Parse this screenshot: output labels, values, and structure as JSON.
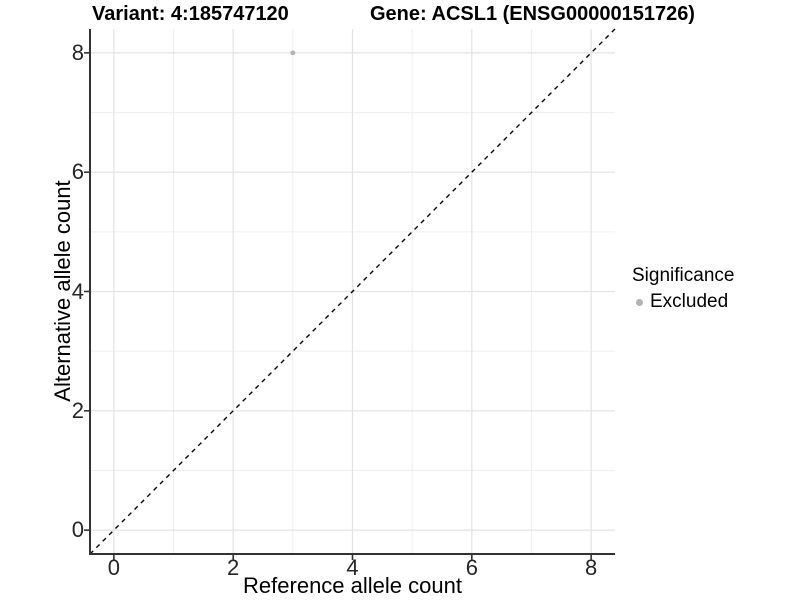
{
  "chart_data": {
    "type": "scatter",
    "title_left": "Variant: 4:185747120",
    "title_right": "Gene: ACSL1 (ENSG00000151726)",
    "xlabel": "Reference allele count",
    "ylabel": "Alternative allele count",
    "xlim": [
      -0.4,
      8.4
    ],
    "ylim": [
      -0.4,
      8.4
    ],
    "xticks": [
      0,
      2,
      4,
      6,
      8
    ],
    "yticks": [
      0,
      2,
      4,
      6,
      8
    ],
    "grid": "major+minor",
    "legend": {
      "title": "Significance",
      "position": "right"
    },
    "reference_line": {
      "slope": 1,
      "intercept": 0,
      "style": "dashed",
      "color": "#000000"
    },
    "series": [
      {
        "name": "Excluded",
        "color": "#b3b3b3",
        "points": [
          {
            "x": 3,
            "y": 8
          }
        ]
      }
    ]
  },
  "theme": {
    "background": "#ffffff",
    "grid_major": "#e3e3e3",
    "grid_minor": "#efefef",
    "axis_color": "#333333",
    "tick_text_color": "#262626"
  }
}
